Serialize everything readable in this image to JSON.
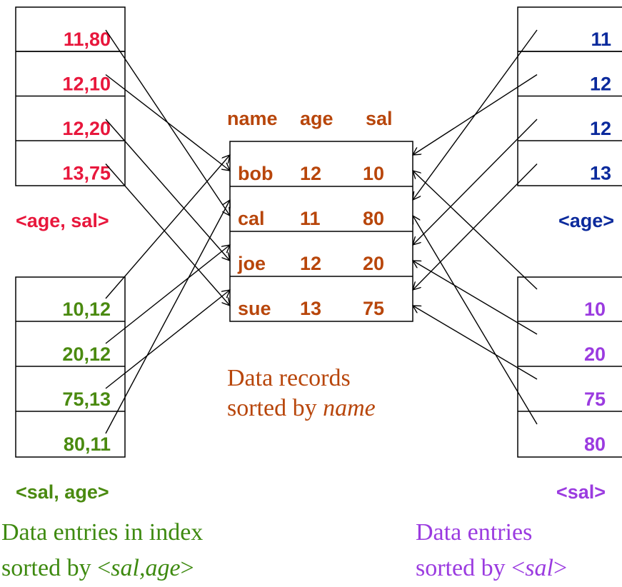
{
  "left_top": {
    "entries": [
      "11,80",
      "12,10",
      "12,20",
      "13,75"
    ],
    "label": "<age, sal>"
  },
  "left_bottom": {
    "entries": [
      "10,12",
      "20,12",
      "75,13",
      "80,11"
    ],
    "label": "<sal, age>"
  },
  "right_top": {
    "entries": [
      "11",
      "12",
      "12",
      "13"
    ],
    "label": "<age>"
  },
  "right_bottom": {
    "entries": [
      "10",
      "20",
      "75",
      "80"
    ],
    "label": "<sal>"
  },
  "records": {
    "header": [
      "name",
      "age",
      "sal"
    ],
    "rows": [
      [
        "bob",
        "12",
        "10"
      ],
      [
        "cal",
        "11",
        "80"
      ],
      [
        "joe",
        "12",
        "20"
      ],
      [
        "sue",
        "13",
        "75"
      ]
    ],
    "caption_line1": "Data records",
    "caption_line2": "sorted by ",
    "caption_italic": "name"
  },
  "left_caption": {
    "line1": "Data entries in index",
    "line2": "sorted by <",
    "italic": "sal,age",
    "end": ">"
  },
  "right_caption": {
    "line1": "Data entries",
    "line2": "sorted by <",
    "italic": "sal",
    "end": ">"
  }
}
